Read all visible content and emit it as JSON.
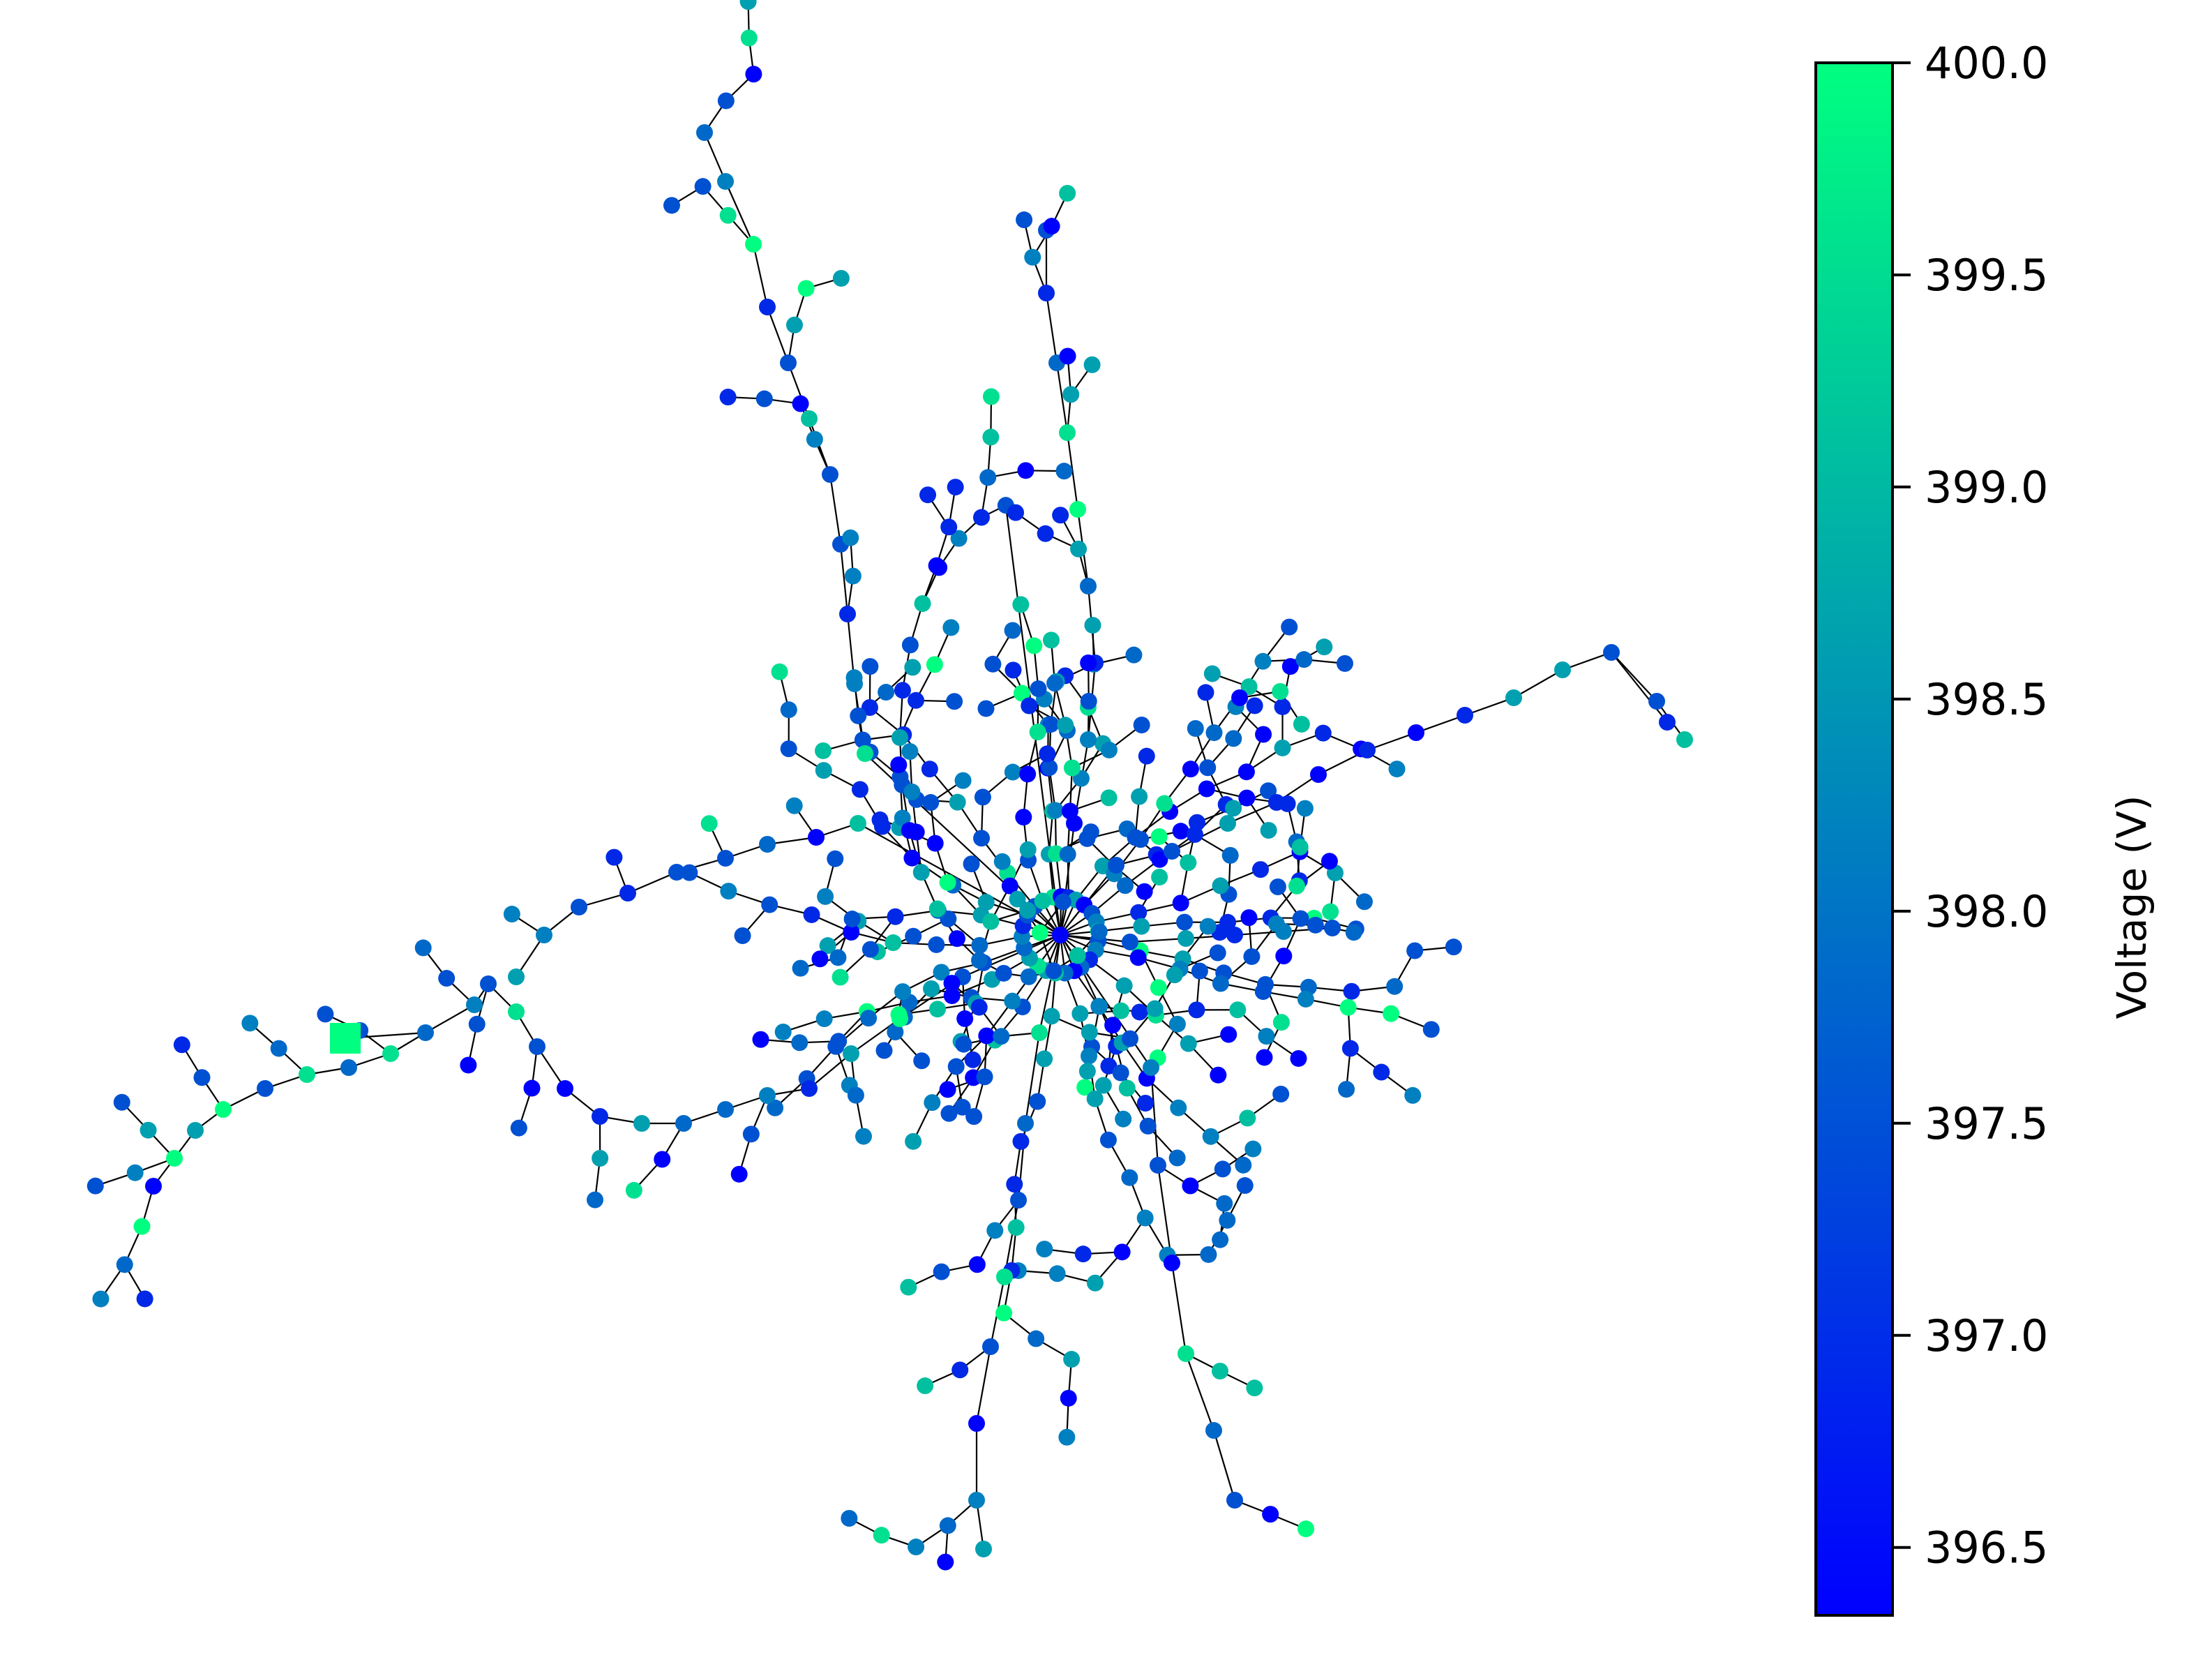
{
  "figure": {
    "colorbar": {
      "label": "Voltage (V)",
      "colormap": [
        "#0000ff",
        "#00ff80"
      ],
      "range": [
        396.34,
        400.0
      ],
      "ticks": [
        {
          "value": 400.0,
          "label": "400.0"
        },
        {
          "value": 399.5,
          "label": "399.5"
        },
        {
          "value": 399.0,
          "label": "399.0"
        },
        {
          "value": 398.5,
          "label": "398.5"
        },
        {
          "value": 398.0,
          "label": "398.0"
        },
        {
          "value": 397.5,
          "label": "397.5"
        },
        {
          "value": 397.0,
          "label": "397.0"
        },
        {
          "value": 396.5,
          "label": "396.5"
        }
      ]
    },
    "network": {
      "node_colors": {
        "low": "#0000ff",
        "mid": "#0078c8",
        "high": "#00ff80",
        "source": "#00ff80"
      },
      "edge_color": "#000000",
      "source_marker": "square-icon"
    }
  }
}
